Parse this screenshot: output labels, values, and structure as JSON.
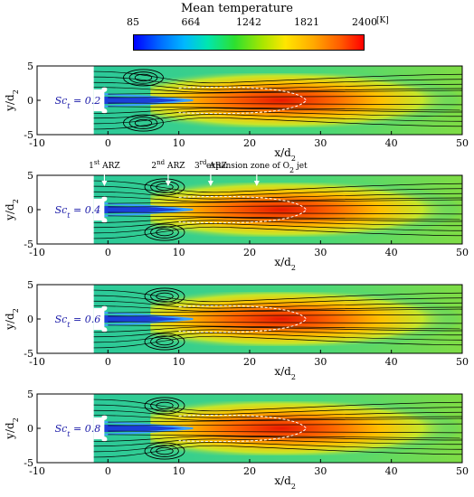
{
  "colorbar": {
    "title": "Mean temperature",
    "ticks": [
      "85",
      "664",
      "1242",
      "1821",
      "2400"
    ],
    "tick_values": [
      85,
      664,
      1242,
      1821,
      2400
    ],
    "min": 85,
    "max": 2400,
    "unit": "[K]"
  },
  "axes": {
    "xlabel": "x/d",
    "xlabel_sub": "2",
    "ylabel": "y/d",
    "ylabel_sub": "2",
    "x_ticks": [
      "-10",
      "0",
      "10",
      "20",
      "30",
      "40",
      "50"
    ],
    "y_ticks": [
      "5",
      "0",
      "-5"
    ]
  },
  "panels": [
    {
      "label_sym": "Sc",
      "label_sub": "t",
      "label_val": "= 0.2"
    },
    {
      "label_sym": "Sc",
      "label_sub": "t",
      "label_val": "= 0.4"
    },
    {
      "label_sym": "Sc",
      "label_sub": "t",
      "label_val": "= 0.6"
    },
    {
      "label_sym": "Sc",
      "label_sub": "t",
      "label_val": "= 0.8"
    }
  ],
  "annotations": [
    {
      "pre": "1",
      "sup": "st",
      "post": " ARZ"
    },
    {
      "pre": "2",
      "sup": "nd",
      "post": " ARZ"
    },
    {
      "pre": "3",
      "sup": "rd",
      "post": " ARZ"
    },
    {
      "pre": "expansion zone of O",
      "sub": "2",
      "post": " jet"
    }
  ],
  "colors": {
    "background": "#2fcf9a",
    "cool": "#0050d0",
    "warm": "#ffd000",
    "hot": "#e02000"
  }
}
